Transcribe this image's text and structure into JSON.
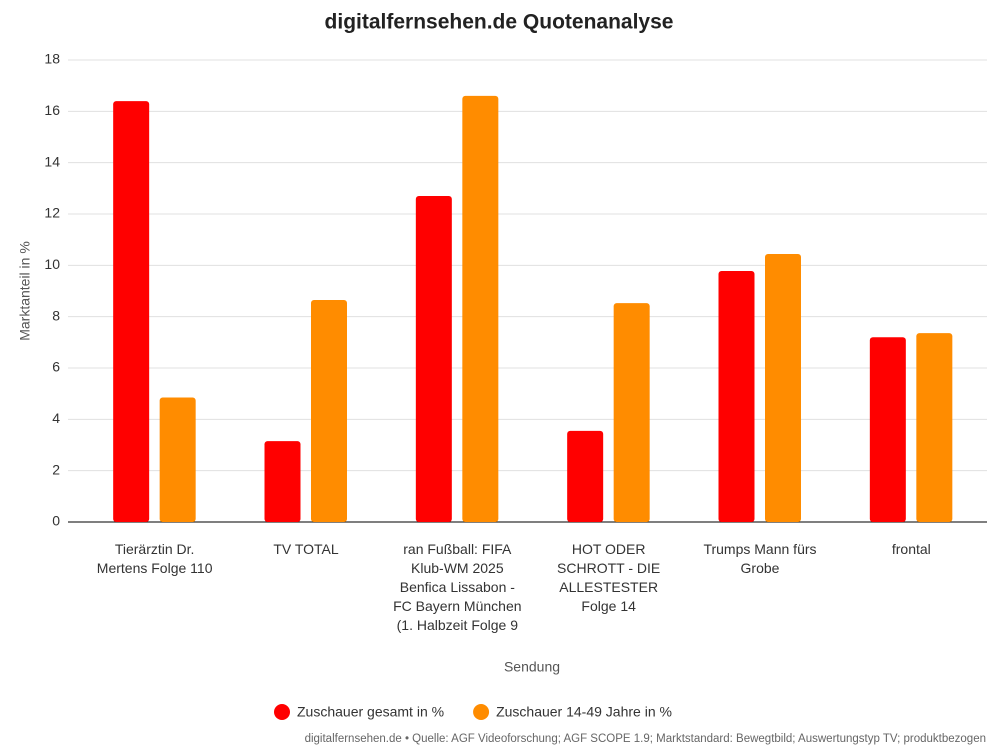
{
  "chart_data": {
    "type": "bar",
    "title": "digitalfernsehen.de Quotenanalyse",
    "x_label": "Sendung",
    "y_label": "Marktanteil in %",
    "source": "digitalfernsehen.de • Quelle: AGF Videoforschung; AGF SCOPE 1.9; Marktstandard: Bewegtbild; Auswertungstyp TV; produktbezogen",
    "categories": [
      "Tierärztin Dr. Mertens Folge 110",
      "TV TOTAL",
      "ran Fußball: FIFA Klub-WM 2025 Benfica Lissabon - FC Bayern München (1. Halbzeit Folge 9",
      "HOT ODER SCHROTT - DIE ALLESTESTER Folge 14",
      "Trumps Mann fürs Grobe",
      "frontal"
    ],
    "series": [
      {
        "name": "Zuschauer gesamt in %",
        "color": "#ff0000",
        "values": [
          16.4,
          3.15,
          12.7,
          3.55,
          9.78,
          7.2
        ]
      },
      {
        "name": "Zuschauer 14-49 Jahre in %",
        "color": "#ff8c00",
        "values": [
          4.85,
          8.65,
          16.6,
          8.53,
          10.44,
          7.36
        ]
      }
    ],
    "ylim": [
      0,
      18
    ],
    "yticks": [
      0,
      2,
      4,
      6,
      8,
      10,
      12,
      14,
      16,
      18
    ],
    "grid": true,
    "legend": "bottom"
  }
}
